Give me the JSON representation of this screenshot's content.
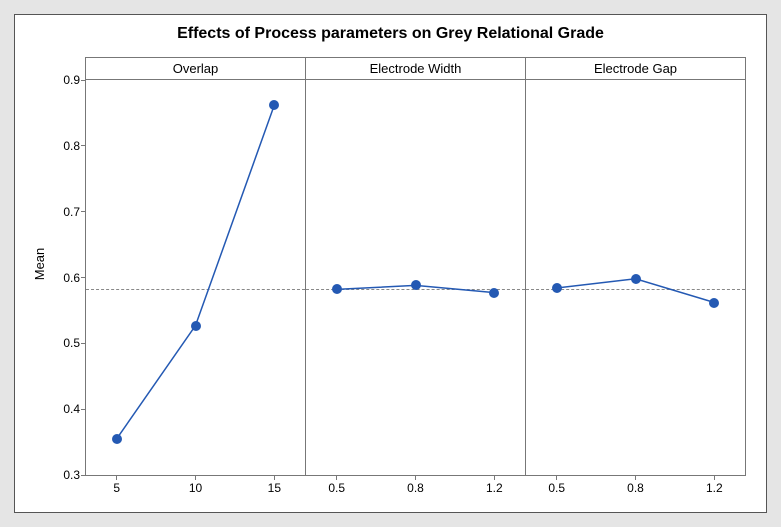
{
  "chart": {
    "title": "Effects of Process parameters on Grey Relational Grade",
    "title_fontsize": 16,
    "ylabel": "Mean",
    "ylabel_fontsize": 13,
    "background_color": "#e5e5e5",
    "plot_background": "#ffffff",
    "border_color": "#777777",
    "ylim": [
      0.3,
      0.9
    ],
    "yticks": [
      0.3,
      0.4,
      0.5,
      0.6,
      0.7,
      0.8,
      0.9
    ],
    "reference_line": 0.583,
    "reference_line_style": "dashed",
    "reference_line_color": "#888888",
    "series_color": "#2459b3",
    "marker_style": "circle",
    "marker_size": 5,
    "line_width": 1.5,
    "tick_fontsize": 12,
    "header_fontsize": 13,
    "panels": [
      {
        "label": "Overlap",
        "x_labels": [
          "5",
          "10",
          "15"
        ],
        "y_values": [
          0.355,
          0.527,
          0.862
        ]
      },
      {
        "label": "Electrode Width",
        "x_labels": [
          "0.5",
          "0.8",
          "1.2"
        ],
        "y_values": [
          0.582,
          0.588,
          0.577
        ]
      },
      {
        "label": "Electrode Gap",
        "x_labels": [
          "0.5",
          "0.8",
          "1.2"
        ],
        "y_values": [
          0.584,
          0.598,
          0.562
        ]
      }
    ]
  }
}
